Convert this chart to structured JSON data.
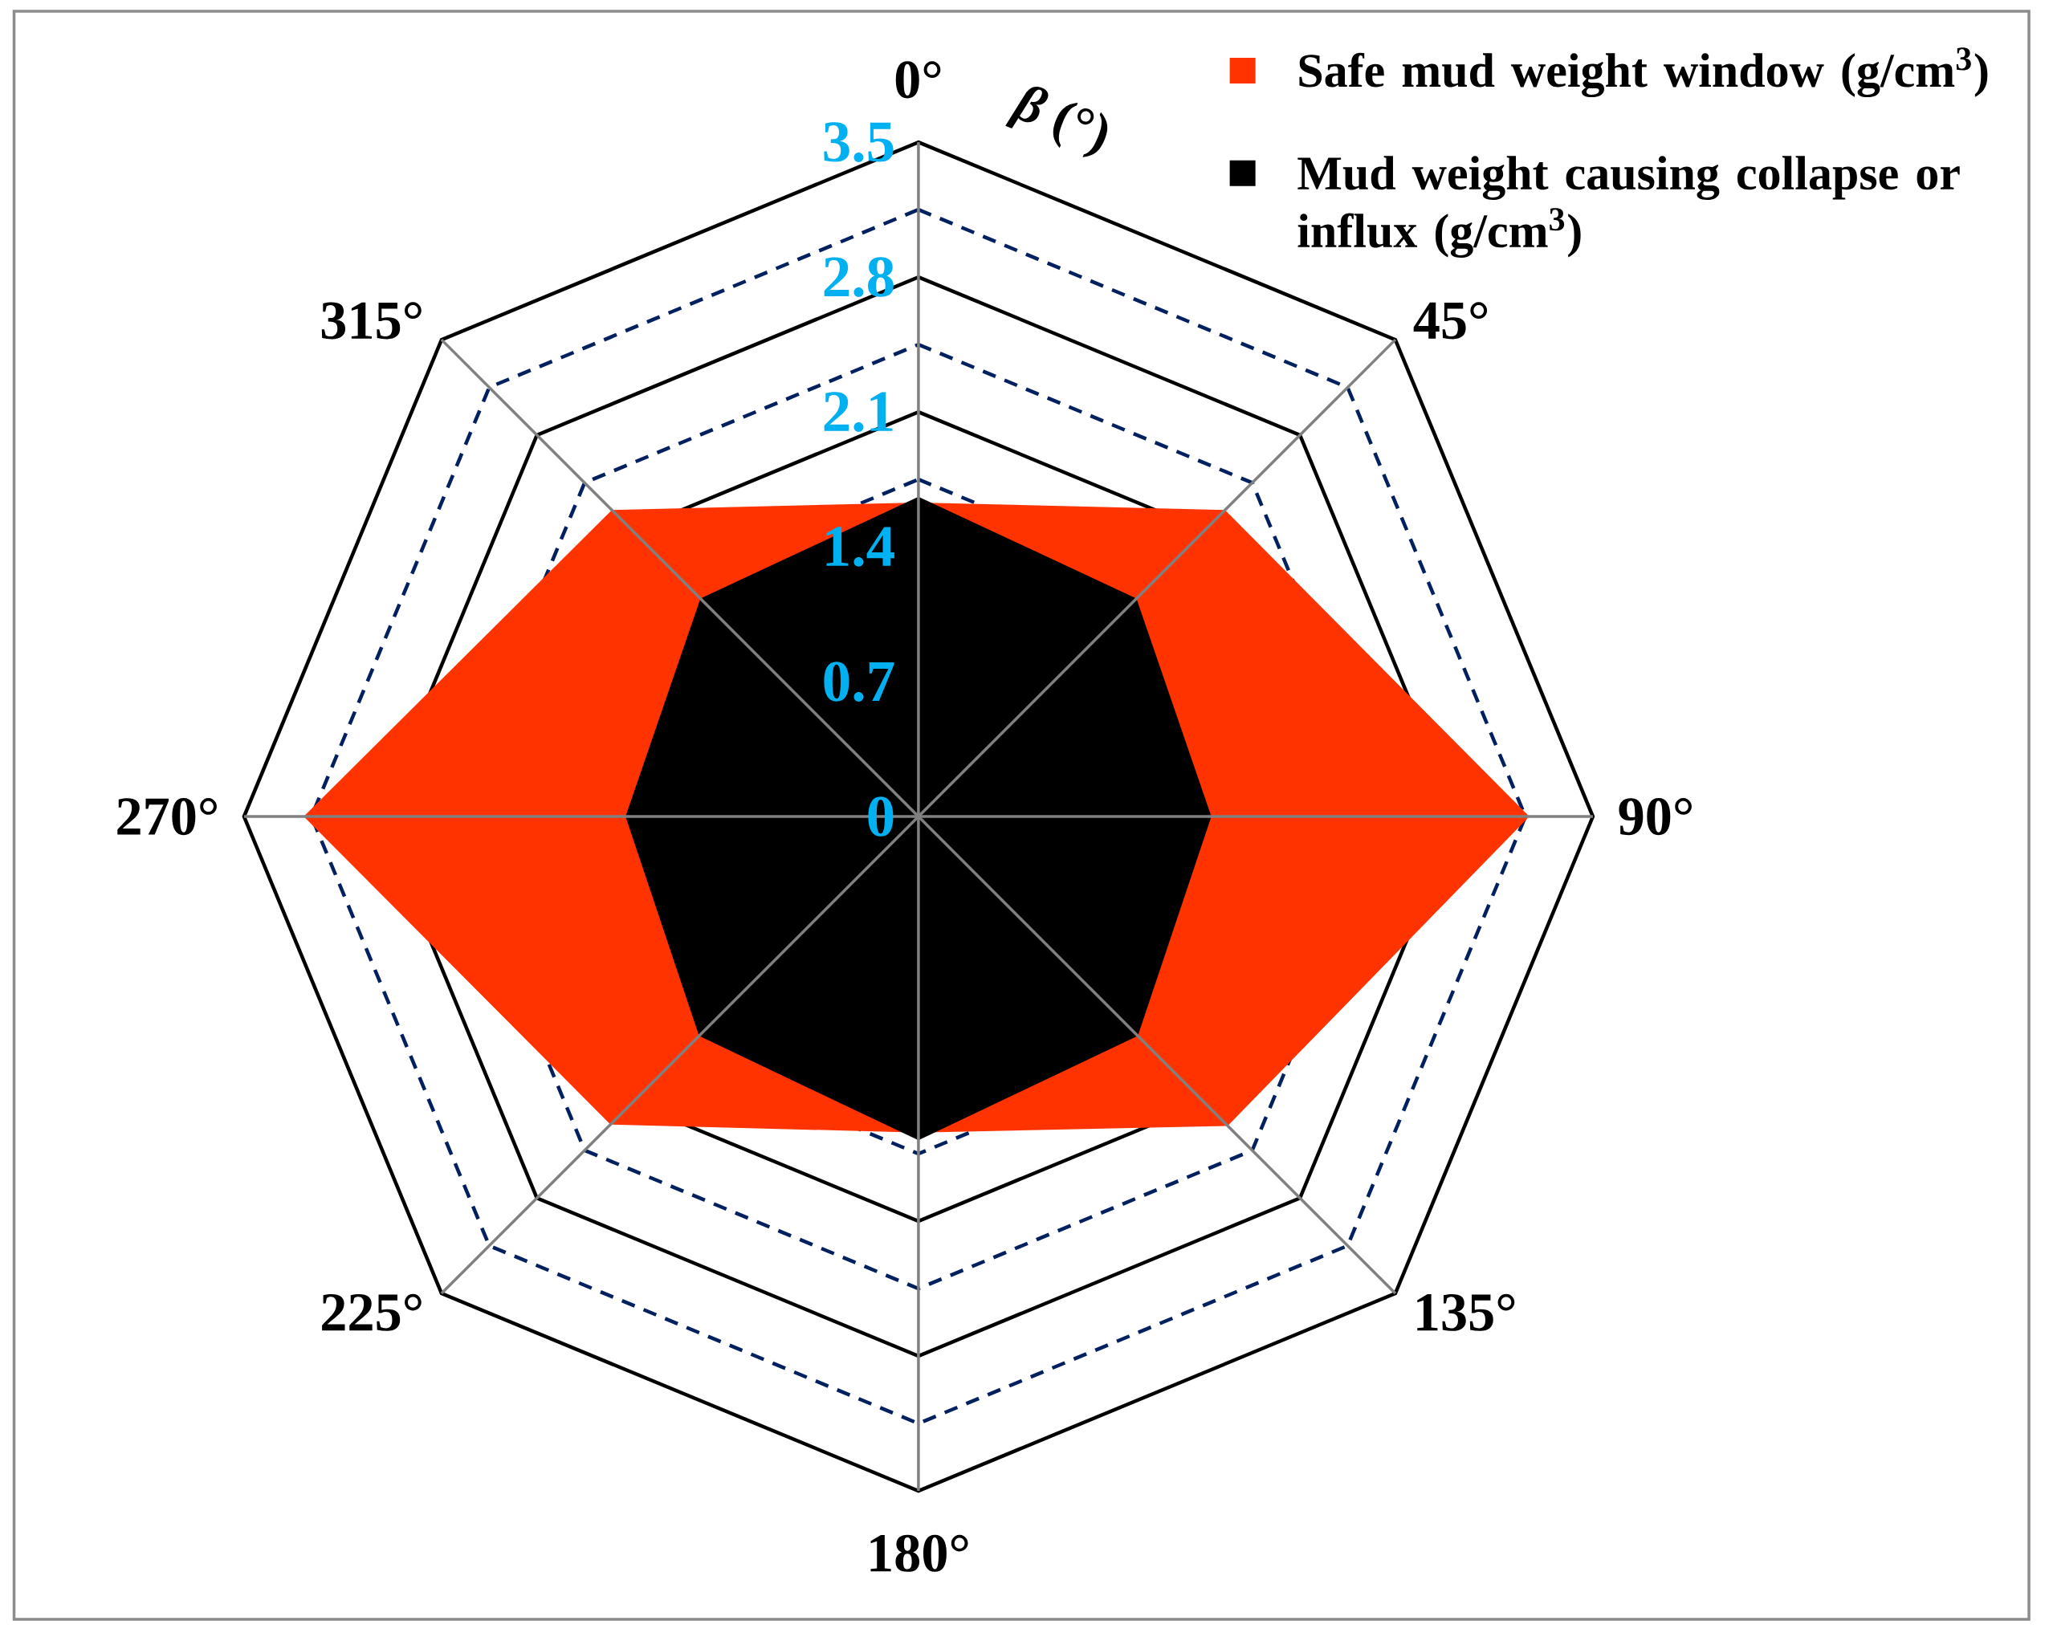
{
  "chart_data": {
    "type": "radar",
    "xlabel": "*β* (°)",
    "categories": [
      "0°",
      "45°",
      "90°",
      "135°",
      "180°",
      "225°",
      "270°",
      "315°"
    ],
    "series": [
      {
        "name": "Safe mud weight window (g/cm$^{3}$)",
        "color": "#ff3300",
        "values": [
          1.63,
          2.25,
          3.17,
          2.27,
          1.64,
          2.26,
          3.19,
          2.25
        ]
      },
      {
        "name": "Mud weight causing collapse or influx (g/cm$^{3}$)",
        "color": "#000000",
        "values": [
          1.66,
          1.6,
          1.52,
          1.61,
          1.68,
          1.61,
          1.52,
          1.6
        ]
      }
    ],
    "ylim": [
      0,
      3.5
    ],
    "yticks": [
      0,
      0.7,
      1.4,
      2.1,
      2.8,
      3.5
    ],
    "grid": true,
    "legend": "top right"
  }
}
